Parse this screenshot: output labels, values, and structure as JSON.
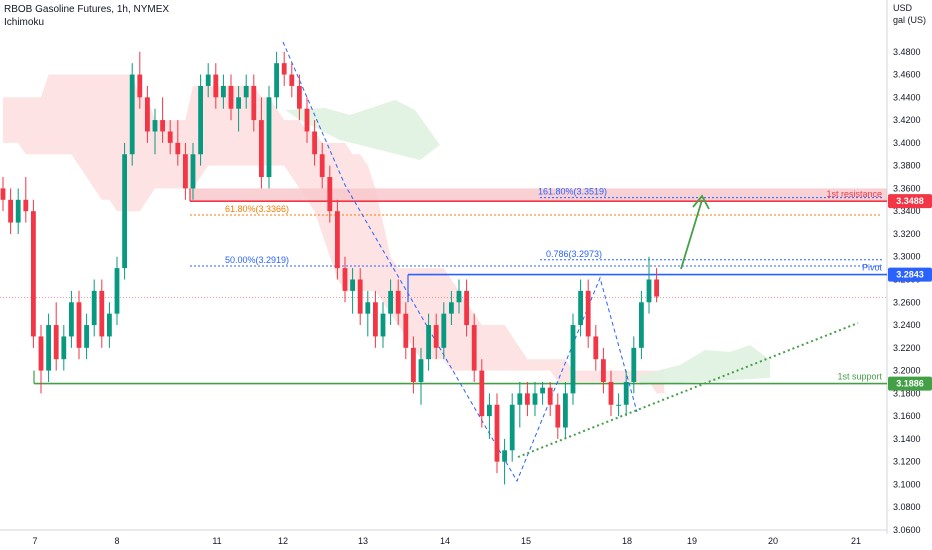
{
  "header": {
    "title": "RBOB Gasoline Futures, 1h, NYMEX",
    "indicator": "Ichimoku"
  },
  "chart_data": {
    "type": "candlestick",
    "y_axis": {
      "unit_line1": "USD",
      "unit_line2": "gal (US)",
      "min": 3.06,
      "max": 3.5,
      "ticks": [
        "3.4800",
        "3.4600",
        "3.4400",
        "3.4200",
        "3.4000",
        "3.3800",
        "3.3600",
        "3.3400",
        "3.3200",
        "3.3000",
        "3.2800",
        "3.2600",
        "3.2400",
        "3.2200",
        "3.2000",
        "3.1800",
        "3.1600",
        "3.1400",
        "3.1200",
        "3.1000",
        "3.0800",
        "3.0600"
      ]
    },
    "x_axis": {
      "ticks": [
        "7",
        "8",
        "11",
        "12",
        "13",
        "14",
        "15",
        "18",
        "19",
        "20",
        "21"
      ]
    },
    "price_levels": [
      {
        "name": "1st resistance",
        "value": 3.3488,
        "label": "3.3488",
        "color": "#f23645"
      },
      {
        "name": "Pivot",
        "value": 3.2843,
        "label": "3.2843",
        "color": "#2962ff"
      },
      {
        "name": "1st support",
        "value": 3.1886,
        "label": "3.1886",
        "color": "#43a047"
      }
    ],
    "fib_levels": [
      {
        "label": "161.80%(3.3519)",
        "value": 3.3519
      },
      {
        "label": "61.80%(3.3366)",
        "value": 3.3366
      },
      {
        "label": "0.786(3.2973)",
        "value": 3.2973
      },
      {
        "label": "50.00%(3.2919)",
        "value": 3.2919
      }
    ],
    "last_price": 3.2643,
    "candles": [
      [
        3.36,
        3.37,
        3.34,
        3.35
      ],
      [
        3.35,
        3.36,
        3.32,
        3.33
      ],
      [
        3.33,
        3.36,
        3.32,
        3.35
      ],
      [
        3.35,
        3.37,
        3.33,
        3.34
      ],
      [
        3.34,
        3.35,
        3.22,
        3.23
      ],
      [
        3.23,
        3.24,
        3.18,
        3.2
      ],
      [
        3.2,
        3.25,
        3.19,
        3.24
      ],
      [
        3.24,
        3.26,
        3.2,
        3.21
      ],
      [
        3.21,
        3.24,
        3.2,
        3.23
      ],
      [
        3.23,
        3.27,
        3.22,
        3.26
      ],
      [
        3.26,
        3.27,
        3.21,
        3.22
      ],
      [
        3.22,
        3.25,
        3.21,
        3.24
      ],
      [
        3.24,
        3.28,
        3.23,
        3.27
      ],
      [
        3.27,
        3.28,
        3.22,
        3.23
      ],
      [
        3.23,
        3.26,
        3.22,
        3.25
      ],
      [
        3.25,
        3.3,
        3.24,
        3.29
      ],
      [
        3.29,
        3.4,
        3.28,
        3.39
      ],
      [
        3.39,
        3.47,
        3.38,
        3.46
      ],
      [
        3.46,
        3.48,
        3.43,
        3.44
      ],
      [
        3.44,
        3.45,
        3.4,
        3.41
      ],
      [
        3.41,
        3.43,
        3.39,
        3.42
      ],
      [
        3.42,
        3.44,
        3.4,
        3.41
      ],
      [
        3.41,
        3.42,
        3.39,
        3.4
      ],
      [
        3.4,
        3.42,
        3.38,
        3.39
      ],
      [
        3.39,
        3.4,
        3.35,
        3.36
      ],
      [
        3.36,
        3.4,
        3.35,
        3.39
      ],
      [
        3.39,
        3.46,
        3.38,
        3.45
      ],
      [
        3.45,
        3.47,
        3.44,
        3.46
      ],
      [
        3.46,
        3.47,
        3.43,
        3.44
      ],
      [
        3.44,
        3.46,
        3.43,
        3.45
      ],
      [
        3.45,
        3.46,
        3.42,
        3.43
      ],
      [
        3.43,
        3.45,
        3.41,
        3.44
      ],
      [
        3.44,
        3.46,
        3.43,
        3.45
      ],
      [
        3.45,
        3.46,
        3.41,
        3.42
      ],
      [
        3.42,
        3.44,
        3.36,
        3.37
      ],
      [
        3.37,
        3.45,
        3.36,
        3.44
      ],
      [
        3.44,
        3.48,
        3.43,
        3.47
      ],
      [
        3.47,
        3.48,
        3.45,
        3.46
      ],
      [
        3.46,
        3.47,
        3.44,
        3.45
      ],
      [
        3.45,
        3.46,
        3.42,
        3.43
      ],
      [
        3.43,
        3.44,
        3.4,
        3.41
      ],
      [
        3.41,
        3.42,
        3.38,
        3.39
      ],
      [
        3.39,
        3.4,
        3.36,
        3.37
      ],
      [
        3.37,
        3.38,
        3.33,
        3.34
      ],
      [
        3.34,
        3.35,
        3.28,
        3.29
      ],
      [
        3.29,
        3.3,
        3.26,
        3.27
      ],
      [
        3.27,
        3.29,
        3.25,
        3.28
      ],
      [
        3.28,
        3.29,
        3.24,
        3.25
      ],
      [
        3.25,
        3.27,
        3.23,
        3.26
      ],
      [
        3.26,
        3.27,
        3.22,
        3.23
      ],
      [
        3.23,
        3.26,
        3.22,
        3.25
      ],
      [
        3.25,
        3.28,
        3.24,
        3.27
      ],
      [
        3.27,
        3.28,
        3.24,
        3.25
      ],
      [
        3.25,
        3.26,
        3.21,
        3.22
      ],
      [
        3.22,
        3.23,
        3.18,
        3.19
      ],
      [
        3.19,
        3.22,
        3.17,
        3.21
      ],
      [
        3.21,
        3.25,
        3.2,
        3.24
      ],
      [
        3.24,
        3.25,
        3.21,
        3.22
      ],
      [
        3.22,
        3.26,
        3.21,
        3.25
      ],
      [
        3.25,
        3.27,
        3.24,
        3.26
      ],
      [
        3.26,
        3.28,
        3.25,
        3.27
      ],
      [
        3.27,
        3.28,
        3.23,
        3.24
      ],
      [
        3.24,
        3.25,
        3.19,
        3.2
      ],
      [
        3.2,
        3.21,
        3.15,
        3.16
      ],
      [
        3.16,
        3.18,
        3.14,
        3.17
      ],
      [
        3.17,
        3.18,
        3.11,
        3.12
      ],
      [
        3.12,
        3.14,
        3.1,
        3.13
      ],
      [
        3.13,
        3.18,
        3.12,
        3.17
      ],
      [
        3.17,
        3.19,
        3.15,
        3.18
      ],
      [
        3.18,
        3.19,
        3.16,
        3.17
      ],
      [
        3.17,
        3.19,
        3.16,
        3.18
      ],
      [
        3.18,
        3.19,
        3.17,
        3.185
      ],
      [
        3.185,
        3.19,
        3.16,
        3.17
      ],
      [
        3.17,
        3.18,
        3.14,
        3.15
      ],
      [
        3.15,
        3.19,
        3.14,
        3.18
      ],
      [
        3.18,
        3.25,
        3.17,
        3.24
      ],
      [
        3.24,
        3.28,
        3.23,
        3.27
      ],
      [
        3.27,
        3.28,
        3.22,
        3.23
      ],
      [
        3.23,
        3.24,
        3.2,
        3.21
      ],
      [
        3.21,
        3.22,
        3.18,
        3.19
      ],
      [
        3.19,
        3.2,
        3.16,
        3.17
      ],
      [
        3.17,
        3.18,
        3.16,
        3.17
      ],
      [
        3.17,
        3.2,
        3.16,
        3.19
      ],
      [
        3.19,
        3.23,
        3.18,
        3.22
      ],
      [
        3.22,
        3.27,
        3.21,
        3.26
      ],
      [
        3.26,
        3.3,
        3.25,
        3.28
      ],
      [
        3.28,
        3.29,
        3.26,
        3.265
      ]
    ],
    "cloud_top": [
      3.44,
      3.44,
      3.44,
      3.44,
      3.44,
      3.44,
      3.46,
      3.46,
      3.46,
      3.46,
      3.46,
      3.46,
      3.46,
      3.46,
      3.46,
      3.46,
      3.46,
      3.46,
      3.44,
      3.44,
      3.42,
      3.42,
      3.42,
      3.42,
      3.42,
      3.45,
      3.45,
      3.45,
      3.45,
      3.45,
      3.45,
      3.45,
      3.45,
      3.45,
      3.44,
      3.44,
      3.43,
      3.42,
      3.42,
      3.42,
      3.41,
      3.41,
      3.4,
      3.4,
      3.4,
      3.4,
      3.39,
      3.39,
      3.38,
      3.36,
      3.33,
      3.3,
      3.29,
      3.29,
      3.29,
      3.29,
      3.29,
      3.29,
      3.29,
      3.28,
      3.27,
      3.26,
      3.25,
      3.24,
      3.24,
      3.24,
      3.24,
      3.23,
      3.22,
      3.21,
      3.21,
      3.21,
      3.21,
      3.21,
      3.21,
      3.2,
      3.2,
      3.2,
      3.2,
      3.2,
      3.2,
      3.2,
      3.2,
      3.2,
      3.2,
      3.2,
      3.2,
      3.2
    ],
    "cloud_bottom": [
      3.4,
      3.4,
      3.4,
      3.39,
      3.39,
      3.39,
      3.39,
      3.39,
      3.39,
      3.39,
      3.38,
      3.37,
      3.36,
      3.35,
      3.35,
      3.34,
      3.34,
      3.34,
      3.34,
      3.35,
      3.36,
      3.36,
      3.36,
      3.36,
      3.36,
      3.36,
      3.37,
      3.38,
      3.38,
      3.38,
      3.38,
      3.38,
      3.38,
      3.38,
      3.38,
      3.38,
      3.38,
      3.38,
      3.37,
      3.36,
      3.35,
      3.34,
      3.32,
      3.3,
      3.28,
      3.27,
      3.27,
      3.27,
      3.27,
      3.27,
      3.26,
      3.25,
      3.24,
      3.23,
      3.22,
      3.21,
      3.21,
      3.21,
      3.21,
      3.2,
      3.2,
      3.2,
      3.2,
      3.2,
      3.2,
      3.2,
      3.2,
      3.2,
      3.2,
      3.2,
      3.2,
      3.2,
      3.2,
      3.19,
      3.19,
      3.19,
      3.19,
      3.19,
      3.19,
      3.19,
      3.19,
      3.19,
      3.19,
      3.19,
      3.19,
      3.19,
      3.18,
      3.18
    ]
  }
}
